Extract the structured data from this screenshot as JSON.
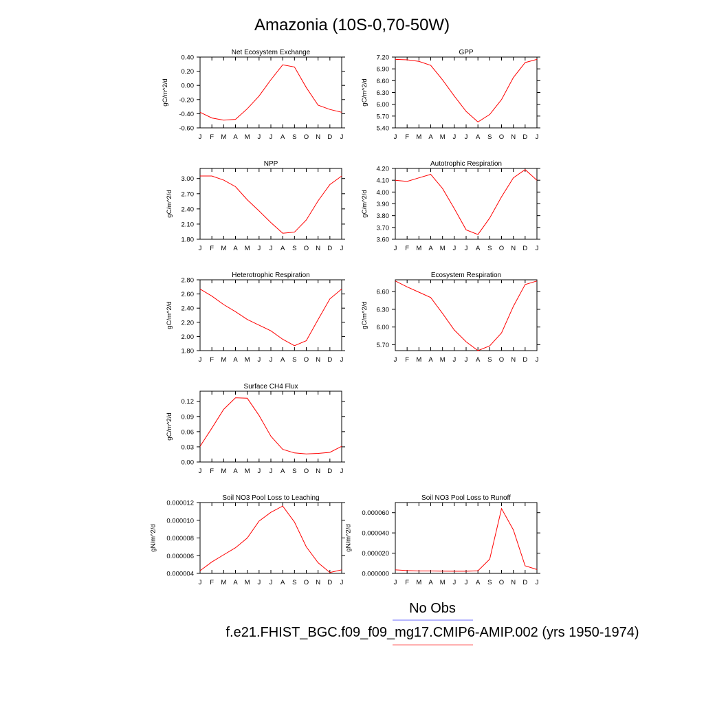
{
  "figure": {
    "title": "Amazonia (10S-0,70-50W)",
    "legend": [
      {
        "label": "No Obs",
        "color": "#6b6bff"
      },
      {
        "label": "f.e21.FHIST_BGC.f09_f09_mg17.CMIP6-AMIP.002 (yrs 1950-1974)",
        "color": "#ff6060"
      }
    ]
  },
  "chart_data": [
    {
      "type": "line",
      "title": "Net Ecosystem Exchange",
      "ylabel": "gC/m^2/d",
      "categories": [
        "J",
        "F",
        "M",
        "A",
        "M",
        "J",
        "J",
        "A",
        "S",
        "O",
        "N",
        "D",
        "J"
      ],
      "ylim": [
        -0.6,
        0.4
      ],
      "yticks": [
        "0.40",
        "0.20",
        "0.00",
        "-0.20",
        "-0.40",
        "-0.60"
      ],
      "ytick_values": [
        0.4,
        0.2,
        0.0,
        -0.2,
        -0.4,
        -0.6
      ],
      "series": [
        {
          "values": [
            -0.38,
            -0.46,
            -0.49,
            -0.48,
            -0.33,
            -0.15,
            0.08,
            0.29,
            0.26,
            -0.03,
            -0.28,
            -0.34,
            -0.38
          ],
          "color": "#ff0000"
        }
      ]
    },
    {
      "type": "line",
      "title": "GPP",
      "ylabel": "gC/m^2/d",
      "categories": [
        "J",
        "F",
        "M",
        "A",
        "M",
        "J",
        "J",
        "A",
        "S",
        "O",
        "N",
        "D",
        "J"
      ],
      "ylim": [
        5.4,
        7.2
      ],
      "yticks": [
        "7.20",
        "6.90",
        "6.60",
        "6.30",
        "6.00",
        "5.70",
        "5.40"
      ],
      "ytick_values": [
        7.2,
        6.9,
        6.6,
        6.3,
        6.0,
        5.7,
        5.4
      ],
      "series": [
        {
          "values": [
            7.14,
            7.13,
            7.09,
            6.99,
            6.62,
            6.21,
            5.82,
            5.55,
            5.74,
            6.12,
            6.68,
            7.06,
            7.14
          ],
          "color": "#ff0000"
        }
      ]
    },
    {
      "type": "line",
      "title": "NPP",
      "ylabel": "gC/m^2/d",
      "categories": [
        "J",
        "F",
        "M",
        "A",
        "M",
        "J",
        "J",
        "A",
        "S",
        "O",
        "N",
        "D",
        "J"
      ],
      "ylim": [
        1.8,
        3.2
      ],
      "yticks": [
        "3.00",
        "2.70",
        "2.40",
        "2.10",
        "1.80"
      ],
      "ytick_values": [
        3.0,
        2.7,
        2.4,
        2.1,
        1.8
      ],
      "series": [
        {
          "values": [
            3.05,
            3.05,
            2.97,
            2.84,
            2.58,
            2.36,
            2.13,
            1.92,
            1.94,
            2.18,
            2.56,
            2.88,
            3.05
          ],
          "color": "#ff0000"
        }
      ]
    },
    {
      "type": "line",
      "title": "Autotrophic Respiration",
      "ylabel": "gC/m^2/d",
      "categories": [
        "J",
        "F",
        "M",
        "A",
        "M",
        "J",
        "J",
        "A",
        "S",
        "O",
        "N",
        "D",
        "J"
      ],
      "ylim": [
        3.6,
        4.2
      ],
      "yticks": [
        "4.20",
        "4.10",
        "4.00",
        "3.90",
        "3.80",
        "3.70",
        "3.60"
      ],
      "ytick_values": [
        4.2,
        4.1,
        4.0,
        3.9,
        3.8,
        3.7,
        3.6
      ],
      "series": [
        {
          "values": [
            4.1,
            4.09,
            4.12,
            4.15,
            4.03,
            3.86,
            3.68,
            3.64,
            3.78,
            3.96,
            4.12,
            4.19,
            4.1
          ],
          "color": "#ff0000"
        }
      ]
    },
    {
      "type": "line",
      "title": "Heterotrophic Respiration",
      "ylabel": "gC/m^2/d",
      "categories": [
        "J",
        "F",
        "M",
        "A",
        "M",
        "J",
        "J",
        "A",
        "S",
        "O",
        "N",
        "D",
        "J"
      ],
      "ylim": [
        1.8,
        2.8
      ],
      "yticks": [
        "2.80",
        "2.60",
        "2.40",
        "2.20",
        "2.00",
        "1.80"
      ],
      "ytick_values": [
        2.8,
        2.6,
        2.4,
        2.2,
        2.0,
        1.8
      ],
      "series": [
        {
          "values": [
            2.67,
            2.57,
            2.45,
            2.35,
            2.24,
            2.16,
            2.08,
            1.96,
            1.87,
            1.94,
            2.24,
            2.53,
            2.67
          ],
          "color": "#ff0000"
        }
      ]
    },
    {
      "type": "line",
      "title": "Ecosystem Respiration",
      "ylabel": "gC/m^2/d",
      "categories": [
        "J",
        "F",
        "M",
        "A",
        "M",
        "J",
        "J",
        "A",
        "S",
        "O",
        "N",
        "D",
        "J"
      ],
      "ylim": [
        5.6,
        6.8
      ],
      "yticks": [
        "6.60",
        "6.30",
        "6.00",
        "5.70"
      ],
      "ytick_values": [
        6.6,
        6.3,
        6.0,
        5.7
      ],
      "series": [
        {
          "values": [
            6.78,
            6.68,
            6.59,
            6.5,
            6.23,
            5.95,
            5.75,
            5.6,
            5.68,
            5.9,
            6.35,
            6.72,
            6.78
          ],
          "color": "#ff0000"
        }
      ]
    },
    {
      "type": "line",
      "title": "Surface CH4 Flux",
      "ylabel": "gC/m^2/d",
      "categories": [
        "J",
        "F",
        "M",
        "A",
        "M",
        "J",
        "J",
        "A",
        "S",
        "O",
        "N",
        "D",
        "J"
      ],
      "ylim": [
        0.0,
        0.14
      ],
      "yticks": [
        "0.12",
        "0.09",
        "0.06",
        "0.03",
        "0.00"
      ],
      "ytick_values": [
        0.12,
        0.09,
        0.06,
        0.03,
        0.0
      ],
      "series": [
        {
          "values": [
            0.031,
            0.067,
            0.104,
            0.127,
            0.126,
            0.092,
            0.051,
            0.025,
            0.018,
            0.016,
            0.017,
            0.019,
            0.031
          ],
          "color": "#ff0000"
        }
      ]
    },
    {
      "type": "line",
      "title": "Soil NO3 Pool Loss to Leaching",
      "ylabel": "gN/m^2/d",
      "categories": [
        "J",
        "F",
        "M",
        "A",
        "M",
        "J",
        "J",
        "A",
        "S",
        "O",
        "N",
        "D",
        "J"
      ],
      "ylim": [
        4e-06,
        1.2e-05
      ],
      "yticks": [
        "0.000012",
        "0.000010",
        "0.000008",
        "0.000006",
        "0.000004"
      ],
      "ytick_values": [
        1.2e-05,
        1e-05,
        8e-06,
        6e-06,
        4e-06
      ],
      "series": [
        {
          "values": [
            4.3e-06,
            5.3e-06,
            6.1e-06,
            6.9e-06,
            8e-06,
            9.9e-06,
            1.09e-05,
            1.16e-05,
            9.8e-06,
            7e-06,
            5.2e-06,
            4.1e-06,
            4.4e-06
          ],
          "color": "#ff0000"
        }
      ]
    },
    {
      "type": "line",
      "title": "Soil NO3 Pool Loss to Runoff",
      "ylabel": "gN/m^2/d",
      "categories": [
        "J",
        "F",
        "M",
        "A",
        "M",
        "J",
        "J",
        "A",
        "S",
        "O",
        "N",
        "D",
        "J"
      ],
      "ylim": [
        0.0,
        7e-05
      ],
      "yticks": [
        "0.000060",
        "0.000040",
        "0.000020",
        "0.000000"
      ],
      "ytick_values": [
        6e-05,
        4e-05,
        2e-05,
        0.0
      ],
      "series": [
        {
          "values": [
            3.5e-06,
            2.8e-06,
            2.4e-06,
            2.4e-06,
            2.2e-06,
            2.1e-06,
            2.1e-06,
            2.6e-06,
            1.4e-05,
            6.4e-05,
            4.3e-05,
            7.5e-06,
            3.8e-06
          ],
          "color": "#ff0000"
        }
      ]
    }
  ]
}
